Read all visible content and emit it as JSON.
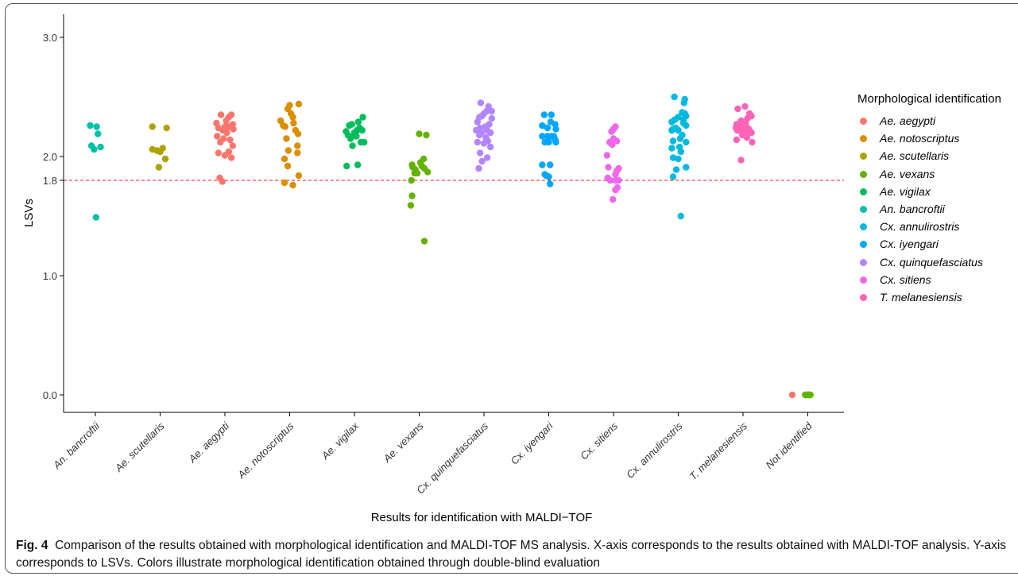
{
  "caption": {
    "fig_label": "Fig. 4",
    "text": "Comparison of the results obtained with morphological identification and MALDI-TOF MS analysis. X-axis corresponds to the results obtained with MALDI-TOF analysis. Y-axis corresponds to LSVs. Colors illustrate morphological identification obtained through double-blind evaluation"
  },
  "chart_data": {
    "type": "scatter",
    "xlabel": "Results for identification with MALDI−TOF",
    "ylabel": "LSVs",
    "ylim": [
      -0.15,
      3.1
    ],
    "yticks": [
      0.0,
      1.0,
      1.8,
      2.0,
      3.0
    ],
    "ytick_labels": [
      "0.0",
      "1.0",
      "1.8",
      "2.0",
      "3.0"
    ],
    "threshold": {
      "value": 1.8,
      "color": "#E41A1C",
      "style": "dashed"
    },
    "categories": [
      "An. bancroftii",
      "Ae. scutellaris",
      "Ae. aegypti",
      "Ae. notoscriptus",
      "Ae. vigilax",
      "Ae. vexans",
      "Cx. quinquefasciatus",
      "Cx. iyengari",
      "Cx. sitiens",
      "Cx. annulirostris",
      "T. melanesiensis",
      "Not identified"
    ],
    "legend": {
      "title": "Morphological identification",
      "placement": "right",
      "entries": [
        {
          "name": "Ae. aegypti",
          "color": "#F8766D"
        },
        {
          "name": "Ae. notoscriptus",
          "color": "#DB8E00"
        },
        {
          "name": "Ae. scutellaris",
          "color": "#AEA200"
        },
        {
          "name": "Ae. vexans",
          "color": "#64B200"
        },
        {
          "name": "Ae. vigilax",
          "color": "#00BD5C"
        },
        {
          "name": "An. bancroftii",
          "color": "#00C1A7"
        },
        {
          "name": "Cx. annulirostris",
          "color": "#00BADE"
        },
        {
          "name": "Cx. iyengari",
          "color": "#00A6FF"
        },
        {
          "name": "Cx. quinquefasciatus",
          "color": "#B385FF"
        },
        {
          "name": "Cx. sitiens",
          "color": "#EF67EB"
        },
        {
          "name": "T. melanesiensis",
          "color": "#FF63B6"
        }
      ]
    },
    "series": [
      {
        "name": "An. bancroftii",
        "category": 0,
        "color": "#00C1A7",
        "x_offsets": [
          -0.08,
          0.02,
          0.04,
          -0.06,
          0.08,
          -0.02,
          0.01
        ],
        "values": [
          2.26,
          2.25,
          2.19,
          2.09,
          2.08,
          2.06,
          1.49
        ]
      },
      {
        "name": "Ae. scutellaris",
        "category": 1,
        "color": "#AEA200",
        "x_offsets": [
          -0.12,
          0.1,
          -0.12,
          0.04,
          -0.05,
          0.0,
          0.08,
          -0.02
        ],
        "values": [
          2.25,
          2.24,
          2.06,
          2.07,
          2.05,
          2.04,
          1.98,
          1.91
        ]
      },
      {
        "name": "Ae. aegypti",
        "category": 2,
        "color": "#F8766D",
        "x_offsets": [
          -0.06,
          0.1,
          -0.13,
          0.02,
          0.06,
          0.12,
          -0.1,
          0.0,
          0.06,
          -0.03,
          0.13,
          -0.12,
          0.03,
          -0.07,
          0.08,
          -0.02,
          0.12,
          -0.1,
          0.06,
          0.0,
          0.1,
          -0.08,
          -0.04
        ],
        "values": [
          2.35,
          2.35,
          2.28,
          2.3,
          2.33,
          2.27,
          2.24,
          2.25,
          2.25,
          2.22,
          2.23,
          2.17,
          2.2,
          2.12,
          2.14,
          2.15,
          2.09,
          2.03,
          2.04,
          2.01,
          1.99,
          1.82,
          1.79
        ]
      },
      {
        "name": "Ae. notoscriptus",
        "category": 3,
        "color": "#DB8E00",
        "x_offsets": [
          0.14,
          0.0,
          -0.03,
          0.02,
          0.05,
          -0.14,
          -0.1,
          -0.07,
          0.06,
          0.09,
          0.13,
          -0.05,
          0.12,
          -0.02,
          -0.08,
          0.12,
          -0.03,
          0.14,
          -0.08,
          0.05
        ],
        "values": [
          2.44,
          2.43,
          2.4,
          2.36,
          2.33,
          2.3,
          2.26,
          2.25,
          2.28,
          2.22,
          2.19,
          2.15,
          2.09,
          2.05,
          1.98,
          2.03,
          1.92,
          1.84,
          1.78,
          1.76
        ]
      },
      {
        "name": "Ae. vigilax",
        "category": 4,
        "color": "#00BD5C",
        "x_offsets": [
          0.13,
          -0.04,
          0.06,
          -0.08,
          0.04,
          -0.13,
          0.0,
          0.08,
          -0.1,
          0.12,
          -0.05,
          0.03,
          -0.06,
          0.15,
          0.1,
          -0.03,
          -0.12,
          0.05
        ],
        "values": [
          2.33,
          2.27,
          2.29,
          2.26,
          2.22,
          2.21,
          2.2,
          2.24,
          2.18,
          2.22,
          2.16,
          2.17,
          2.15,
          2.12,
          2.12,
          2.09,
          1.92,
          1.93
        ]
      },
      {
        "name": "Ae. vexans",
        "category": 5,
        "color": "#64B200",
        "x_offsets": [
          0.0,
          0.11,
          -0.11,
          0.02,
          0.07,
          -0.1,
          -0.06,
          0.04,
          0.08,
          -0.07,
          -0.03,
          0.13,
          -0.12,
          -0.11,
          -0.13,
          0.08
        ],
        "values": [
          2.19,
          2.18,
          1.93,
          1.95,
          1.98,
          1.91,
          1.89,
          1.92,
          1.9,
          1.86,
          1.86,
          1.87,
          1.8,
          1.67,
          1.59,
          1.29
        ]
      },
      {
        "name": "Cx. quinquefasciatus",
        "category": 6,
        "color": "#B385FF",
        "x_offsets": [
          -0.05,
          0.07,
          0.04,
          0.0,
          0.12,
          -0.03,
          -0.07,
          0.12,
          -0.1,
          0.08,
          -0.06,
          0.02,
          0.05,
          -0.12,
          -0.04,
          0.1,
          -0.07,
          0.03,
          -0.1,
          0.06,
          0.0,
          0.1,
          -0.06,
          -0.03,
          0.05,
          -0.08
        ],
        "values": [
          2.45,
          2.42,
          2.38,
          2.36,
          2.38,
          2.34,
          2.33,
          2.32,
          2.29,
          2.27,
          2.24,
          2.25,
          2.22,
          2.22,
          2.2,
          2.2,
          2.18,
          2.16,
          2.12,
          2.13,
          2.11,
          2.08,
          2.03,
          1.96,
          1.99,
          1.9
        ]
      },
      {
        "name": "Cx. iyengari",
        "category": 7,
        "color": "#00A6FF",
        "x_offsets": [
          -0.07,
          0.04,
          0.03,
          -0.1,
          0.1,
          -0.02,
          0.11,
          -0.1,
          0.04,
          0.08,
          -0.02,
          0.11,
          0.1,
          -0.06,
          0.0,
          -0.1,
          0.02,
          -0.06,
          0.0,
          -0.04,
          0.02
        ],
        "values": [
          2.35,
          2.35,
          2.29,
          2.26,
          2.27,
          2.24,
          2.23,
          2.17,
          2.17,
          2.17,
          2.17,
          2.12,
          2.14,
          2.12,
          2.12,
          1.93,
          1.93,
          1.85,
          1.83,
          1.84,
          1.77
        ]
      },
      {
        "name": "Cx. sitiens",
        "category": 8,
        "color": "#EF67EB",
        "x_offsets": [
          0.03,
          0.0,
          -0.03,
          0.0,
          0.05,
          -0.06,
          -0.02,
          -0.1,
          0.08,
          0.05,
          -0.08,
          0.03,
          -0.09,
          -0.05,
          0.03,
          0.08,
          0.06,
          0.03,
          -0.01
        ],
        "values": [
          2.25,
          2.23,
          2.21,
          2.15,
          2.13,
          2.12,
          2.1,
          2.01,
          1.9,
          1.88,
          1.91,
          1.85,
          1.82,
          1.8,
          1.8,
          1.8,
          1.74,
          1.72,
          1.64
        ]
      },
      {
        "name": "Cx. annulirostris",
        "category": 9,
        "color": "#00BADE",
        "x_offsets": [
          -0.06,
          0.1,
          0.09,
          0.06,
          0.1,
          0.0,
          0.12,
          0.08,
          -0.05,
          -0.1,
          0.08,
          -0.04,
          0.12,
          -0.08,
          0.0,
          -0.1,
          0.06,
          0.03,
          -0.08,
          0.02,
          0.12,
          -0.1,
          -0.08,
          0.04,
          0.0,
          0.12,
          -0.03,
          -0.08,
          0.04
        ],
        "values": [
          2.5,
          2.48,
          2.45,
          2.37,
          2.36,
          2.33,
          2.34,
          2.31,
          2.31,
          2.29,
          2.28,
          2.24,
          2.26,
          2.23,
          2.22,
          2.22,
          2.18,
          2.15,
          2.13,
          2.08,
          2.12,
          2.07,
          1.99,
          2.04,
          1.98,
          1.91,
          1.89,
          1.83,
          1.5
        ]
      },
      {
        "name": "T. melanesiensis",
        "category": 10,
        "color": "#FF63B6",
        "x_offsets": [
          0.03,
          -0.08,
          0.1,
          0.13,
          0.07,
          -0.03,
          0.0,
          -0.1,
          -0.06,
          0.04,
          -0.01,
          -0.11,
          0.05,
          0.09,
          -0.09,
          -0.03,
          0.02,
          0.1,
          0.03,
          0.13,
          -0.08,
          -0.01,
          0.06,
          -0.1,
          0.14,
          -0.03
        ],
        "values": [
          2.42,
          2.4,
          2.36,
          2.34,
          2.32,
          2.3,
          2.29,
          2.27,
          2.26,
          2.28,
          2.25,
          2.24,
          2.25,
          2.23,
          2.22,
          2.22,
          2.22,
          2.21,
          2.2,
          2.2,
          2.22,
          2.18,
          2.16,
          2.14,
          2.12,
          1.97
        ]
      },
      {
        "name": "Not identified",
        "category": 11,
        "color": "#F8766D",
        "x_offsets": [
          -0.24
        ],
        "values": [
          0.0
        ]
      },
      {
        "name": "Not identified",
        "category": 11,
        "color": "#64B200",
        "x_offsets": [
          -0.04,
          -0.02,
          0.0,
          0.02,
          0.04,
          -0.03,
          0.01,
          0.03
        ],
        "values": [
          0.0,
          0.0,
          0.0,
          0.0,
          0.0,
          0.0,
          0.0,
          0.0
        ]
      }
    ]
  }
}
